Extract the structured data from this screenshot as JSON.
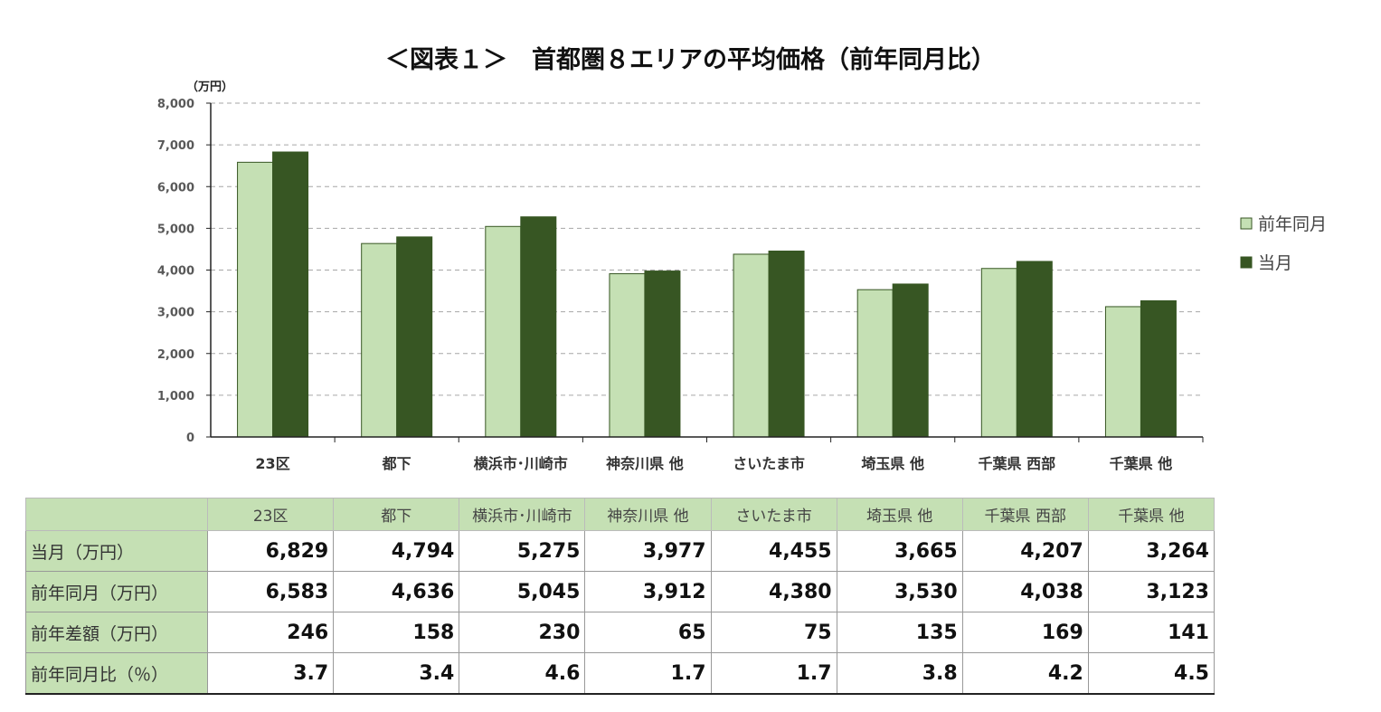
{
  "title": "＜図表１＞　首都圏８エリアの平均価格（前年同月比）",
  "chart_data": {
    "type": "bar",
    "title": "＜図表１＞　首都圏８エリアの平均価格（前年同月比）",
    "ylabel": "（万円）",
    "ylim": [
      0,
      8000
    ],
    "yticks": [
      "0",
      "1,000",
      "2,000",
      "3,000",
      "4,000",
      "5,000",
      "6,000",
      "7,000",
      "8,000"
    ],
    "grid": true,
    "legend_position": "right",
    "categories": [
      "23区",
      "都下",
      "横浜市･川崎市",
      "神奈川県 他",
      "さいたま市",
      "埼玉県 他",
      "千葉県 西部",
      "千葉県 他"
    ],
    "series": [
      {
        "name": "前年同月",
        "color": "#c5e0b4",
        "values": [
          6583,
          4636,
          5045,
          3912,
          4380,
          3530,
          4038,
          3123
        ]
      },
      {
        "name": "当月",
        "color": "#375623",
        "values": [
          6829,
          4794,
          5275,
          3977,
          4455,
          3665,
          4207,
          3264
        ]
      }
    ]
  },
  "table": {
    "headers": [
      "23区",
      "都下",
      "横浜市･川崎市",
      "神奈川県 他",
      "さいたま市",
      "埼玉県 他",
      "千葉県 西部",
      "千葉県 他"
    ],
    "rows": [
      {
        "label": "当月（万円）",
        "values": [
          "6,829",
          "4,794",
          "5,275",
          "3,977",
          "4,455",
          "3,665",
          "4,207",
          "3,264"
        ]
      },
      {
        "label": "前年同月（万円）",
        "values": [
          "6,583",
          "4,636",
          "5,045",
          "3,912",
          "4,380",
          "3,530",
          "4,038",
          "3,123"
        ]
      },
      {
        "label": "前年差額（万円）",
        "values": [
          "246",
          "158",
          "230",
          "65",
          "75",
          "135",
          "169",
          "141"
        ]
      },
      {
        "label": "前年同月比（％）",
        "values": [
          "3.7",
          "3.4",
          "4.6",
          "1.7",
          "1.7",
          "3.8",
          "4.2",
          "4.5"
        ]
      }
    ]
  }
}
